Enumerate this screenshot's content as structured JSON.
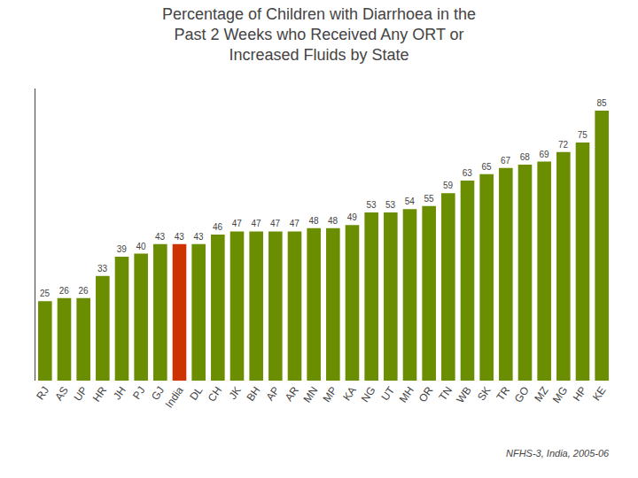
{
  "chart_data": {
    "type": "bar",
    "title": "Percentage of Children with Diarrhoea in the\nPast 2 Weeks who Received Any ORT or\nIncreased Fluids by State",
    "categories": [
      "RJ",
      "AS",
      "UP",
      "HR",
      "JH",
      "PJ",
      "GJ",
      "India",
      "DL",
      "CH",
      "JK",
      "BH",
      "AP",
      "AR",
      "MN",
      "MP",
      "KA",
      "NG",
      "UT",
      "MH",
      "OR",
      "TN",
      "WB",
      "SK",
      "TR",
      "GO",
      "MZ",
      "MG",
      "HP",
      "KE"
    ],
    "values": [
      25,
      26,
      26,
      33,
      39,
      40,
      43,
      43,
      43,
      46,
      47,
      47,
      47,
      47,
      48,
      48,
      49,
      53,
      53,
      54,
      55,
      59,
      63,
      65,
      67,
      68,
      69,
      72,
      75,
      85
    ],
    "colors": [
      "#6b8e00",
      "#6b8e00",
      "#6b8e00",
      "#6b8e00",
      "#6b8e00",
      "#6b8e00",
      "#6b8e00",
      "#cc3300",
      "#6b8e00",
      "#6b8e00",
      "#6b8e00",
      "#6b8e00",
      "#6b8e00",
      "#6b8e00",
      "#6b8e00",
      "#6b8e00",
      "#6b8e00",
      "#6b8e00",
      "#6b8e00",
      "#6b8e00",
      "#6b8e00",
      "#6b8e00",
      "#6b8e00",
      "#6b8e00",
      "#6b8e00",
      "#6b8e00",
      "#6b8e00",
      "#6b8e00",
      "#6b8e00",
      "#6b8e00"
    ],
    "ylim": [
      0,
      92
    ],
    "grid": false,
    "data_labels": true,
    "tick_labels": "x",
    "annotations": [
      "NFHS-3, India, 2005-06"
    ]
  }
}
